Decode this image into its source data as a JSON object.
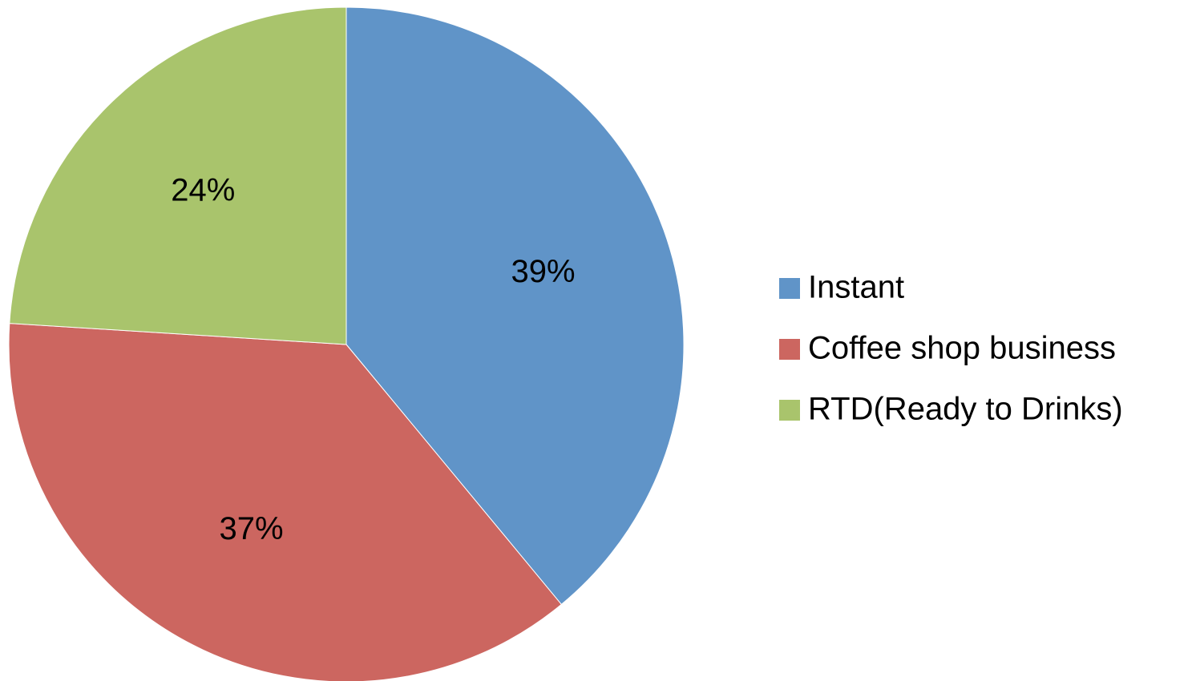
{
  "chart_data": {
    "type": "pie",
    "categories": [
      "Instant",
      "Coffee shop business",
      "RTD(Ready to Drinks)"
    ],
    "values": [
      39,
      37,
      24
    ],
    "value_labels": [
      "39%",
      "37%",
      "24%"
    ],
    "colors": [
      "#6094c8",
      "#cc6660",
      "#a9c46c"
    ],
    "legend": "right"
  }
}
